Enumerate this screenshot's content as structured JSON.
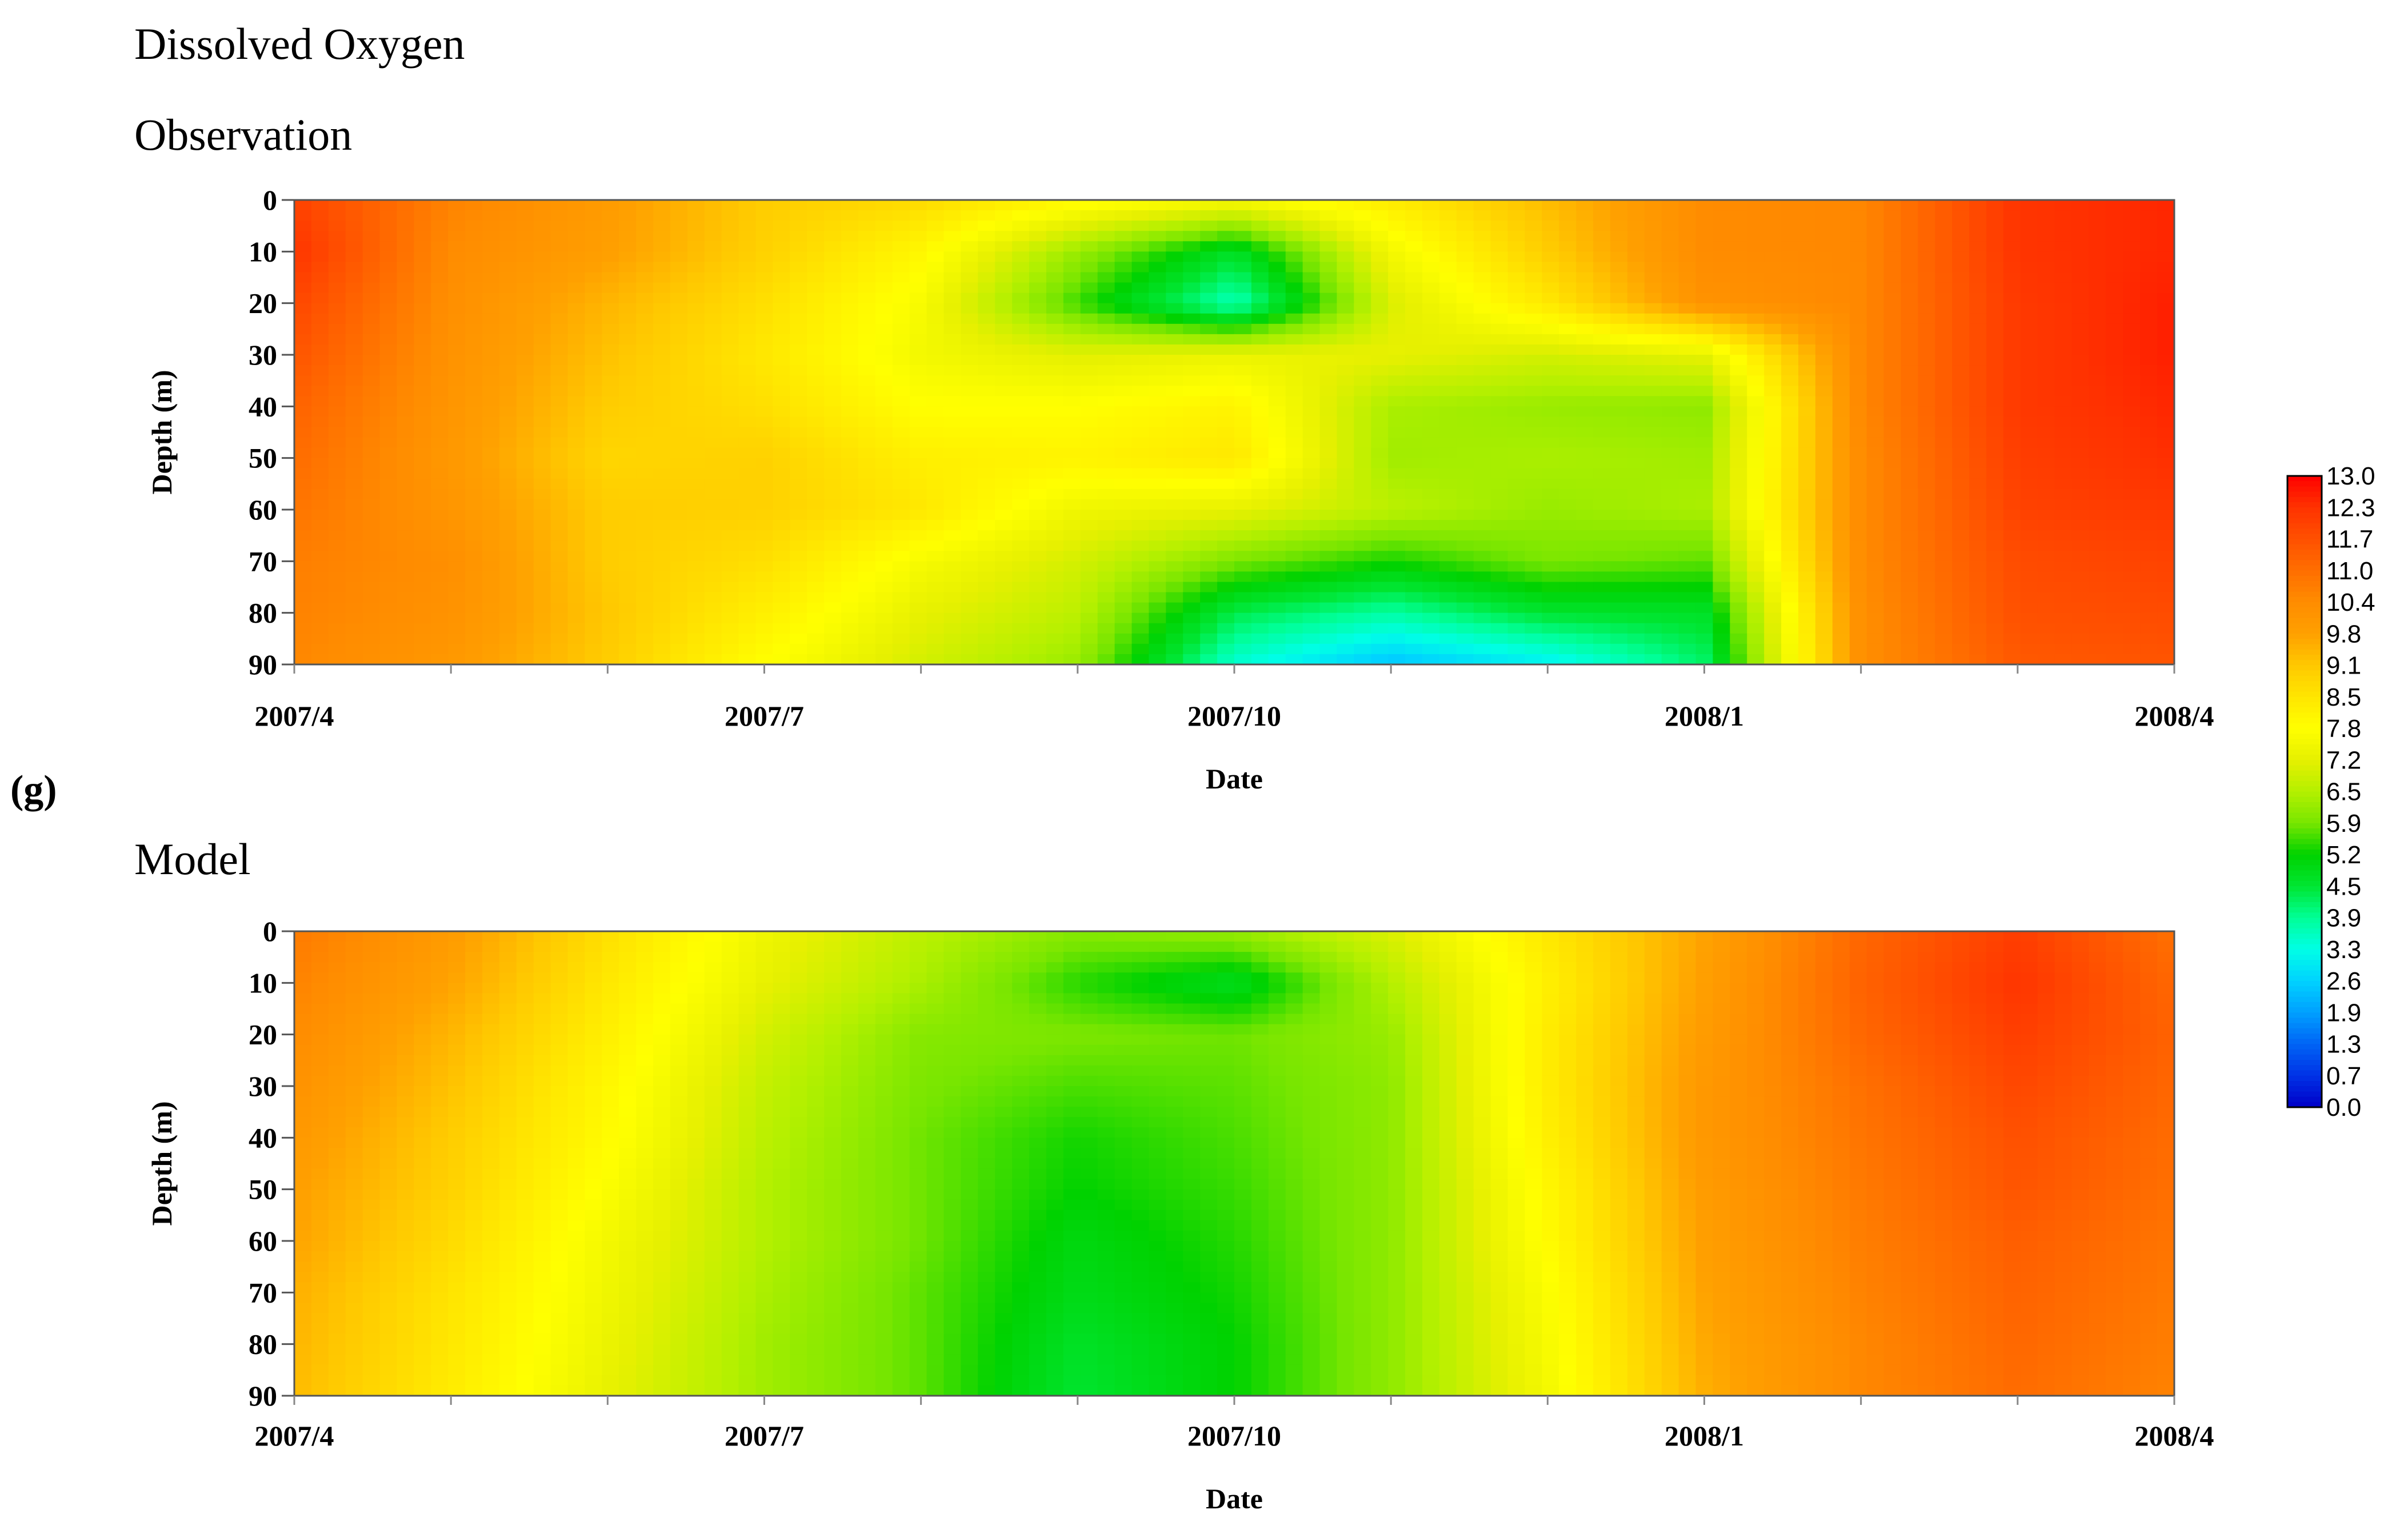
{
  "figure": {
    "heading": "Dissolved Oxygen",
    "panel_label": "(g)"
  },
  "chart_data": [
    {
      "type": "heatmap",
      "subtitle": "Observation",
      "xlabel": "Date",
      "ylabel": "Depth (m)",
      "x_ticks": [
        "2007/4",
        "2007/7",
        "2007/10",
        "2008/1",
        "2008/4"
      ],
      "x_months": [
        "2007/4",
        "2007/5",
        "2007/6",
        "2007/7",
        "2007/8",
        "2007/9",
        "2007/10",
        "2007/11",
        "2007/12",
        "2008/1",
        "2008/2",
        "2008/3",
        "2008/4"
      ],
      "y_ticks": [
        0,
        10,
        20,
        30,
        40,
        50,
        60,
        70,
        80,
        90
      ],
      "ylim": [
        0,
        90
      ],
      "y_inverted": true,
      "grid": "contour",
      "depths": [
        0,
        10,
        20,
        30,
        40,
        50,
        60,
        70,
        80,
        90
      ],
      "values": [
        [
          12.0,
          10.6,
          9.9,
          9.0,
          8.7,
          8.0,
          7.6,
          8.3,
          9.3,
          10.4,
          10.5,
          12.3,
          12.5
        ],
        [
          12.3,
          10.4,
          9.8,
          8.9,
          8.0,
          6.2,
          4.7,
          7.5,
          9.0,
          10.4,
          10.5,
          12.3,
          12.5
        ],
        [
          11.9,
          10.3,
          9.4,
          8.6,
          7.6,
          5.5,
          3.6,
          7.0,
          8.4,
          10.2,
          10.5,
          12.2,
          12.6
        ],
        [
          11.6,
          10.2,
          9.2,
          8.4,
          7.5,
          7.1,
          7.3,
          7.2,
          6.9,
          7.2,
          10.5,
          12.2,
          12.6
        ],
        [
          11.3,
          10.1,
          9.0,
          8.6,
          7.8,
          7.8,
          8.1,
          6.4,
          6.2,
          6.1,
          10.5,
          12.2,
          12.5
        ],
        [
          11.1,
          10.0,
          8.8,
          8.9,
          8.2,
          8.1,
          8.4,
          6.3,
          6.4,
          6.3,
          10.4,
          12.1,
          12.4
        ],
        [
          10.9,
          10.1,
          9.0,
          8.9,
          8.4,
          7.4,
          7.2,
          6.6,
          6.2,
          6.4,
          10.4,
          12.0,
          12.2
        ],
        [
          10.7,
          10.3,
          9.0,
          8.6,
          7.6,
          6.9,
          5.9,
          5.3,
          5.9,
          5.7,
          10.4,
          11.8,
          12.0
        ],
        [
          10.6,
          10.2,
          9.1,
          8.2,
          7.2,
          6.6,
          4.4,
          3.8,
          4.6,
          4.7,
          10.3,
          11.7,
          11.8
        ],
        [
          10.5,
          10.0,
          9.0,
          7.8,
          6.9,
          6.2,
          3.4,
          2.4,
          3.0,
          4.2,
          10.3,
          11.5,
          11.6
        ]
      ]
    },
    {
      "type": "heatmap",
      "subtitle": "Model",
      "xlabel": "Date",
      "ylabel": "Depth (m)",
      "x_ticks": [
        "2007/4",
        "2007/7",
        "2007/10",
        "2008/1",
        "2008/4"
      ],
      "x_months": [
        "2007/4",
        "2007/5",
        "2007/6",
        "2007/7",
        "2007/8",
        "2007/9",
        "2007/10",
        "2007/11",
        "2007/12",
        "2008/1",
        "2008/2",
        "2008/3",
        "2008/4"
      ],
      "y_ticks": [
        0,
        10,
        20,
        30,
        40,
        50,
        60,
        70,
        80,
        90
      ],
      "ylim": [
        0,
        90
      ],
      "y_inverted": true,
      "grid": "contour",
      "depths": [
        0,
        10,
        20,
        30,
        40,
        50,
        60,
        70,
        80,
        90
      ],
      "values": [
        [
          10.8,
          9.9,
          8.6,
          7.4,
          6.6,
          6.0,
          6.2,
          7.0,
          8.4,
          9.7,
          11.2,
          12.1,
          11.0
        ],
        [
          10.6,
          9.7,
          8.4,
          7.2,
          6.4,
          5.4,
          4.8,
          6.5,
          8.2,
          9.8,
          11.3,
          12.3,
          11.2
        ],
        [
          10.4,
          9.4,
          8.2,
          6.9,
          6.0,
          5.9,
          5.8,
          6.2,
          8.3,
          9.9,
          11.2,
          12.1,
          11.3
        ],
        [
          10.2,
          9.2,
          8.0,
          6.7,
          5.9,
          5.6,
          5.7,
          6.1,
          8.3,
          10.0,
          11.0,
          11.9,
          11.2
        ],
        [
          10.0,
          9.0,
          7.9,
          6.6,
          5.8,
          5.3,
          5.6,
          6.1,
          8.2,
          10.0,
          10.9,
          11.7,
          11.1
        ],
        [
          9.8,
          8.9,
          7.7,
          6.5,
          5.8,
          5.2,
          5.5,
          6.1,
          8.0,
          9.9,
          10.8,
          11.6,
          11.0
        ],
        [
          9.7,
          8.7,
          7.5,
          6.5,
          5.8,
          5.0,
          5.4,
          6.1,
          7.9,
          9.8,
          10.7,
          11.4,
          10.9
        ],
        [
          9.5,
          8.5,
          7.4,
          6.4,
          5.7,
          4.9,
          5.3,
          6.1,
          7.7,
          9.7,
          10.6,
          11.3,
          10.8
        ],
        [
          9.4,
          8.4,
          7.3,
          6.3,
          5.7,
          4.7,
          5.2,
          6.1,
          7.6,
          9.6,
          10.5,
          11.2,
          10.7
        ],
        [
          9.3,
          8.3,
          7.2,
          6.3,
          5.7,
          4.6,
          5.2,
          6.1,
          7.5,
          9.5,
          10.5,
          11.1,
          10.6
        ]
      ]
    }
  ],
  "colorbar": {
    "labels": [
      "13.0",
      "12.3",
      "11.7",
      "11.0",
      "10.4",
      "9.8",
      "9.1",
      "8.5",
      "7.8",
      "7.2",
      "6.5",
      "5.9",
      "5.2",
      "4.5",
      "3.9",
      "3.3",
      "2.6",
      "1.9",
      "1.3",
      "0.7",
      "0.0"
    ],
    "min": 0.0,
    "max": 13.0,
    "colors": [
      "#0000c8",
      "#0032e6",
      "#0064f5",
      "#00a0ff",
      "#00d2ff",
      "#00ffe6",
      "#00ff96",
      "#00e632",
      "#00d200",
      "#78e600",
      "#b4f000",
      "#e6f000",
      "#ffff00",
      "#ffe600",
      "#ffc800",
      "#ffa000",
      "#ff8c00",
      "#ff6e00",
      "#ff5000",
      "#ff3200",
      "#ff0000"
    ]
  }
}
